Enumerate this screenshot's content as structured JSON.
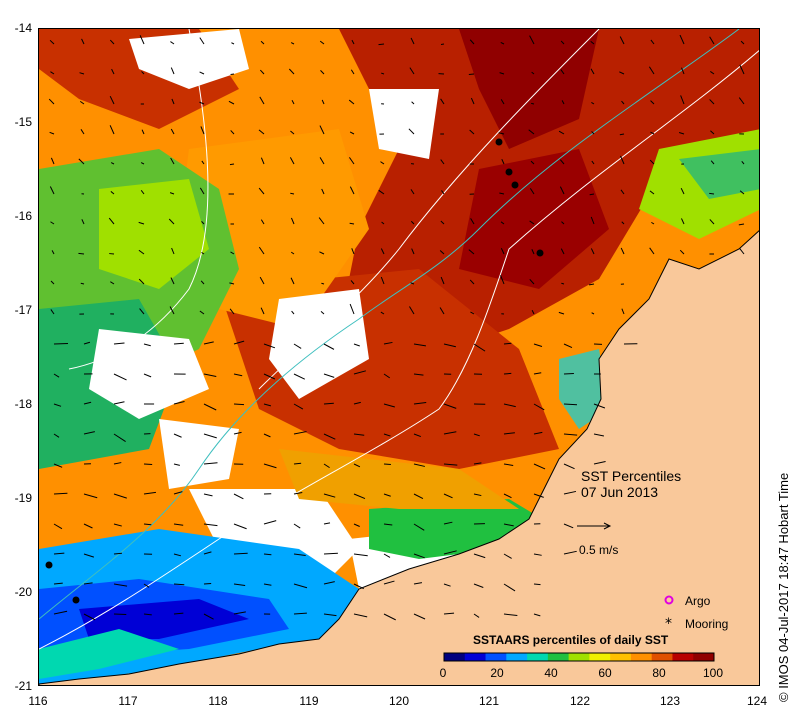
{
  "title": {
    "line1": "SST Percentiles",
    "line2": "07 Jun 2013"
  },
  "velocity_legend": {
    "label": "0.5 m/s"
  },
  "legend": {
    "argo": "Argo",
    "mooring": "Mooring"
  },
  "colorbar": {
    "title": "SSTAARS percentiles of daily SST",
    "ticks": [
      "0",
      "20",
      "40",
      "60",
      "80",
      "100"
    ],
    "colors": [
      "#00007f",
      "#0000d6",
      "#0050ff",
      "#00a8ff",
      "#00d8b0",
      "#20c040",
      "#a0e000",
      "#f0f000",
      "#ffc000",
      "#ff9000",
      "#e05000",
      "#b80000",
      "#900000"
    ]
  },
  "axes": {
    "lat_ticks": [
      "-14",
      "-15",
      "-16",
      "-17",
      "-18",
      "-19",
      "-20",
      "-21"
    ],
    "lon_ticks": [
      "116",
      "117",
      "118",
      "119",
      "120",
      "121",
      "122",
      "123",
      "124"
    ]
  },
  "credit": "© IMOS 04-Jul-2017 18:47 Hobart Time",
  "colors": {
    "land": "#f9c89a",
    "missing": "#ffffff"
  }
}
